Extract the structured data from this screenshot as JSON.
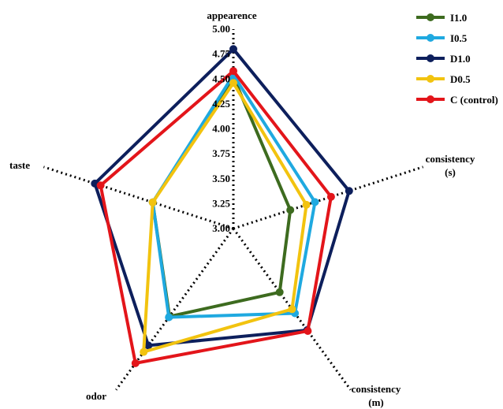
{
  "chart_data": {
    "type": "radar",
    "axes": [
      {
        "lines": [
          "appearence"
        ]
      },
      {
        "lines": [
          "consistency",
          "(s)"
        ]
      },
      {
        "lines": [
          "consistency",
          "(m)"
        ]
      },
      {
        "lines": [
          "odor"
        ]
      },
      {
        "lines": [
          "taste"
        ]
      }
    ],
    "rlim": [
      3.0,
      5.0
    ],
    "ticks": [
      "3.00",
      "3.25",
      "3.50",
      "3.75",
      "4.00",
      "4.25",
      "4.50",
      "4.75",
      "5.00"
    ],
    "gridlines": false,
    "legend_position": "top-right",
    "series": [
      {
        "name": "I1.0",
        "color": "#3d6b1f",
        "values": [
          4.52,
          3.6,
          3.79,
          4.09,
          3.85
        ]
      },
      {
        "name": "I0.5",
        "color": "#1fa9e0",
        "values": [
          4.54,
          3.86,
          4.05,
          4.1,
          3.85
        ]
      },
      {
        "name": "D1.0",
        "color": "#0d1f5c",
        "values": [
          4.8,
          4.22,
          4.26,
          4.45,
          4.46
        ]
      },
      {
        "name": "D0.5",
        "color": "#f2c30f",
        "values": [
          4.46,
          3.77,
          4.0,
          4.53,
          3.85
        ]
      },
      {
        "name": "C (control)",
        "color": "#e3151a",
        "values": [
          4.58,
          4.03,
          4.27,
          4.67,
          4.4
        ]
      }
    ]
  }
}
